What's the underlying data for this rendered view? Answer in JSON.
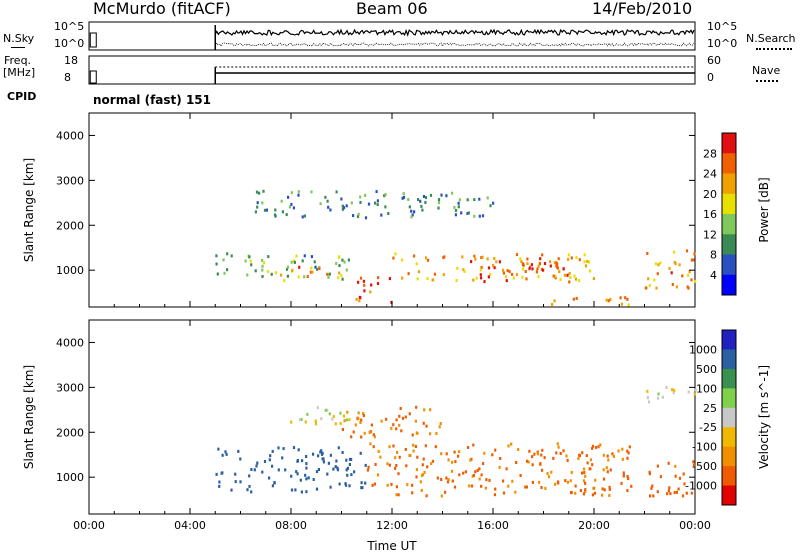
{
  "header": {
    "station": "McMurdo (fitACF)",
    "beam": "Beam 06",
    "date": "14/Feb/2010"
  },
  "top_panels": {
    "nsky_label": "N.Sky",
    "nsky_ticks": [
      "10^5",
      "10^0"
    ],
    "nsearch_label": "N.Search",
    "freq_label": "Freq.",
    "freq_unit": "[MHz]",
    "freq_ticks": [
      "18",
      "8"
    ],
    "nave_label": "Nave",
    "nave_ticks": [
      "60",
      "0"
    ],
    "cpid_label": "CPID",
    "cpid_value": "normal (fast) 151"
  },
  "colors": {
    "power_scale": [
      "#0000ff",
      "#2a4fbf",
      "#3a8a55",
      "#7fc85a",
      "#e8e000",
      "#f0a000",
      "#f06000",
      "#e01010"
    ],
    "velocity_scale": [
      "#e00000",
      "#f05a00",
      "#f09000",
      "#f0b800",
      "#c8c8c8",
      "#7fd04a",
      "#3a9050",
      "#2a5fa0",
      "#2020c0"
    ]
  },
  "chart_data": [
    {
      "type": "heatmap",
      "title": "",
      "ylabel": "Slant Range [km]",
      "xlabel": "",
      "x_ticks": [
        "00:00",
        "04:00",
        "08:00",
        "12:00",
        "16:00",
        "20:00",
        "00:00"
      ],
      "y_ticks": [
        "1000",
        "2000",
        "3000",
        "4000"
      ],
      "ylim": [
        180,
        4500
      ],
      "xlim_hours": [
        0,
        24
      ],
      "colorbar": {
        "label": "Power [dB]",
        "ticks": [
          "4",
          "8",
          "12",
          "16",
          "20",
          "24",
          "28"
        ],
        "range": [
          0,
          30
        ]
      },
      "regions": [
        {
          "t0": 5.0,
          "t1": 10.5,
          "r0": 800,
          "r1": 1400,
          "value": 12
        },
        {
          "t0": 7.5,
          "t1": 10.0,
          "r0": 850,
          "r1": 1100,
          "value": 22
        },
        {
          "t0": 10.5,
          "t1": 12.0,
          "r0": 300,
          "r1": 900,
          "value": 26
        },
        {
          "t0": 12.0,
          "t1": 20.0,
          "r0": 800,
          "r1": 1400,
          "value": 20
        },
        {
          "t0": 15.0,
          "t1": 19.0,
          "r0": 750,
          "r1": 1300,
          "value": 27
        },
        {
          "t0": 6.5,
          "t1": 16.0,
          "r0": 2200,
          "r1": 2800,
          "value": 9
        },
        {
          "t0": 22.0,
          "t1": 24.0,
          "r0": 600,
          "r1": 1500,
          "value": 22
        },
        {
          "t0": 18.0,
          "t1": 21.5,
          "r0": 250,
          "r1": 450,
          "value": 22
        }
      ]
    },
    {
      "type": "heatmap",
      "title": "",
      "ylabel": "Slant Range [km]",
      "xlabel": "Time UT",
      "x_ticks": [
        "00:00",
        "04:00",
        "08:00",
        "12:00",
        "16:00",
        "20:00",
        "00:00"
      ],
      "y_ticks": [
        "1000",
        "2000",
        "3000",
        "4000"
      ],
      "ylim": [
        180,
        4500
      ],
      "xlim_hours": [
        0,
        24
      ],
      "colorbar": {
        "label": "Velocity [m s^-1]",
        "ticks": [
          "1000",
          "500",
          "100",
          "25",
          "-25",
          "-100",
          "-500",
          "-1000"
        ],
        "range": [
          -1000,
          1000
        ]
      },
      "regions": [
        {
          "t0": 5.0,
          "t1": 11.0,
          "r0": 700,
          "r1": 1700,
          "value": 250
        },
        {
          "t0": 11.0,
          "t1": 21.5,
          "r0": 600,
          "r1": 1800,
          "value": -120
        },
        {
          "t0": 7.5,
          "t1": 10.5,
          "r0": 2200,
          "r1": 2600,
          "value": 0
        },
        {
          "t0": 22.0,
          "t1": 24.0,
          "r0": 600,
          "r1": 1400,
          "value": -150
        },
        {
          "t0": 10.0,
          "t1": 14.0,
          "r0": 1900,
          "r1": 2600,
          "value": -120
        },
        {
          "t0": 22.0,
          "t1": 24.0,
          "r0": 2700,
          "r1": 3100,
          "value": 0
        }
      ]
    }
  ]
}
